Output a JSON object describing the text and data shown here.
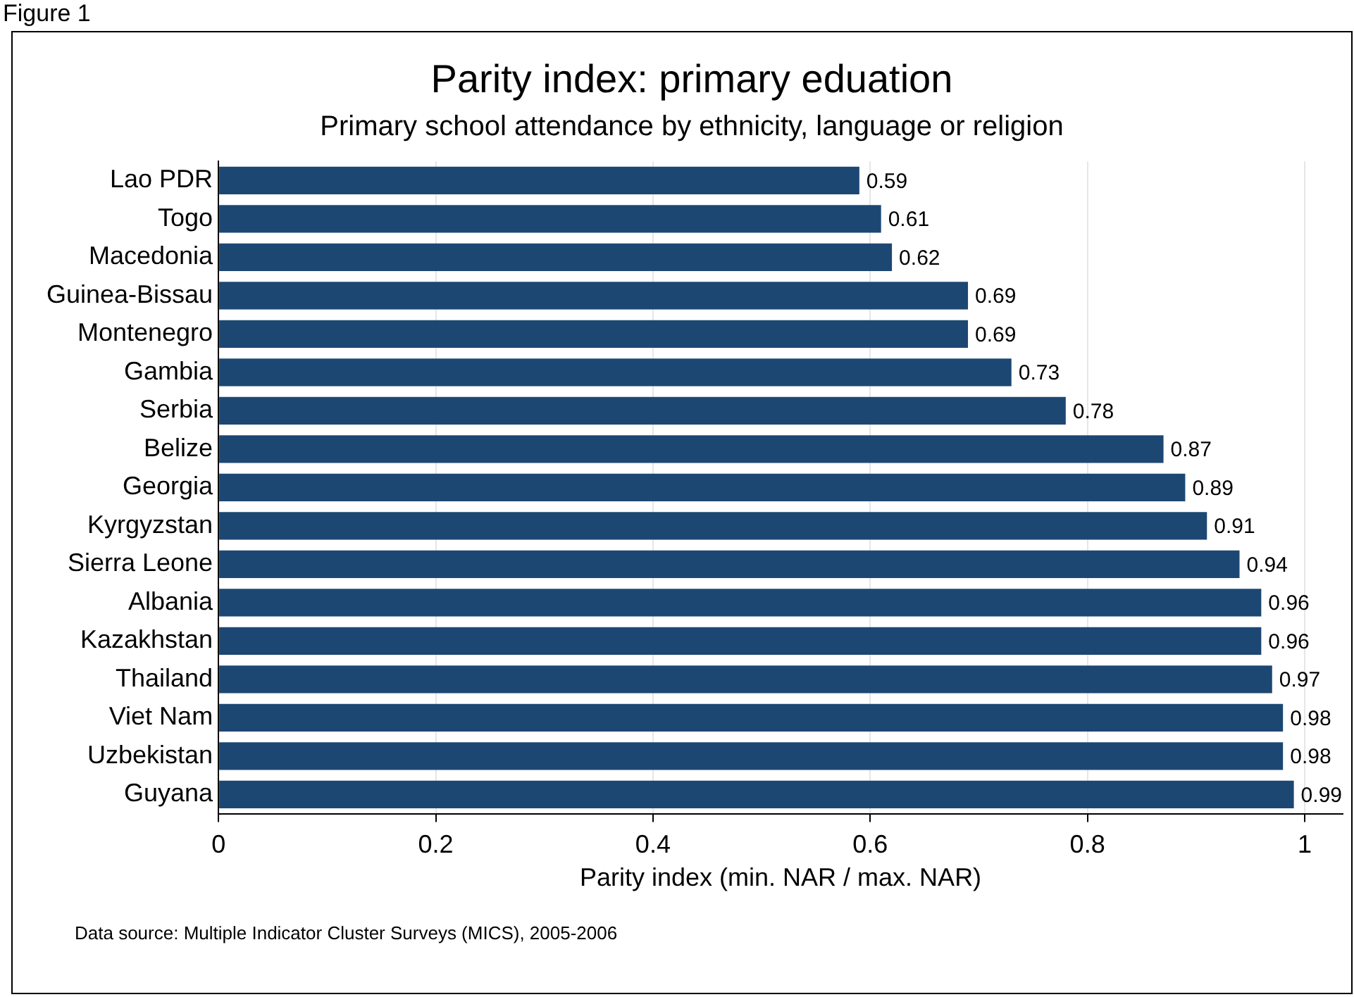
{
  "chart_data": {
    "type": "bar",
    "orientation": "horizontal",
    "title": "Parity index: primary eduation",
    "subtitle": "Primary school attendance by ethnicity, language or religion",
    "xlabel": "Parity index (min. NAR / max. NAR)",
    "categories": [
      "Lao PDR",
      "Togo",
      "Macedonia",
      "Guinea-Bissau",
      "Montenegro",
      "Gambia",
      "Serbia",
      "Belize",
      "Georgia",
      "Kyrgyzstan",
      "Sierra Leone",
      "Albania",
      "Kazakhstan",
      "Thailand",
      "Viet Nam",
      "Uzbekistan",
      "Guyana"
    ],
    "values": [
      0.59,
      0.61,
      0.62,
      0.69,
      0.69,
      0.73,
      0.78,
      0.87,
      0.89,
      0.91,
      0.94,
      0.96,
      0.96,
      0.97,
      0.98,
      0.98,
      0.99
    ],
    "color": "#1d4773",
    "data_labels": true,
    "xlim": [
      0,
      1.035
    ],
    "xticks": [
      0,
      0.2,
      0.4,
      0.6,
      0.8,
      1
    ],
    "grid": "x",
    "legend": false,
    "annotations": [
      "Figure 1",
      "Data source: Multiple Indicator Cluster Surveys (MICS), 2005-2006"
    ]
  }
}
